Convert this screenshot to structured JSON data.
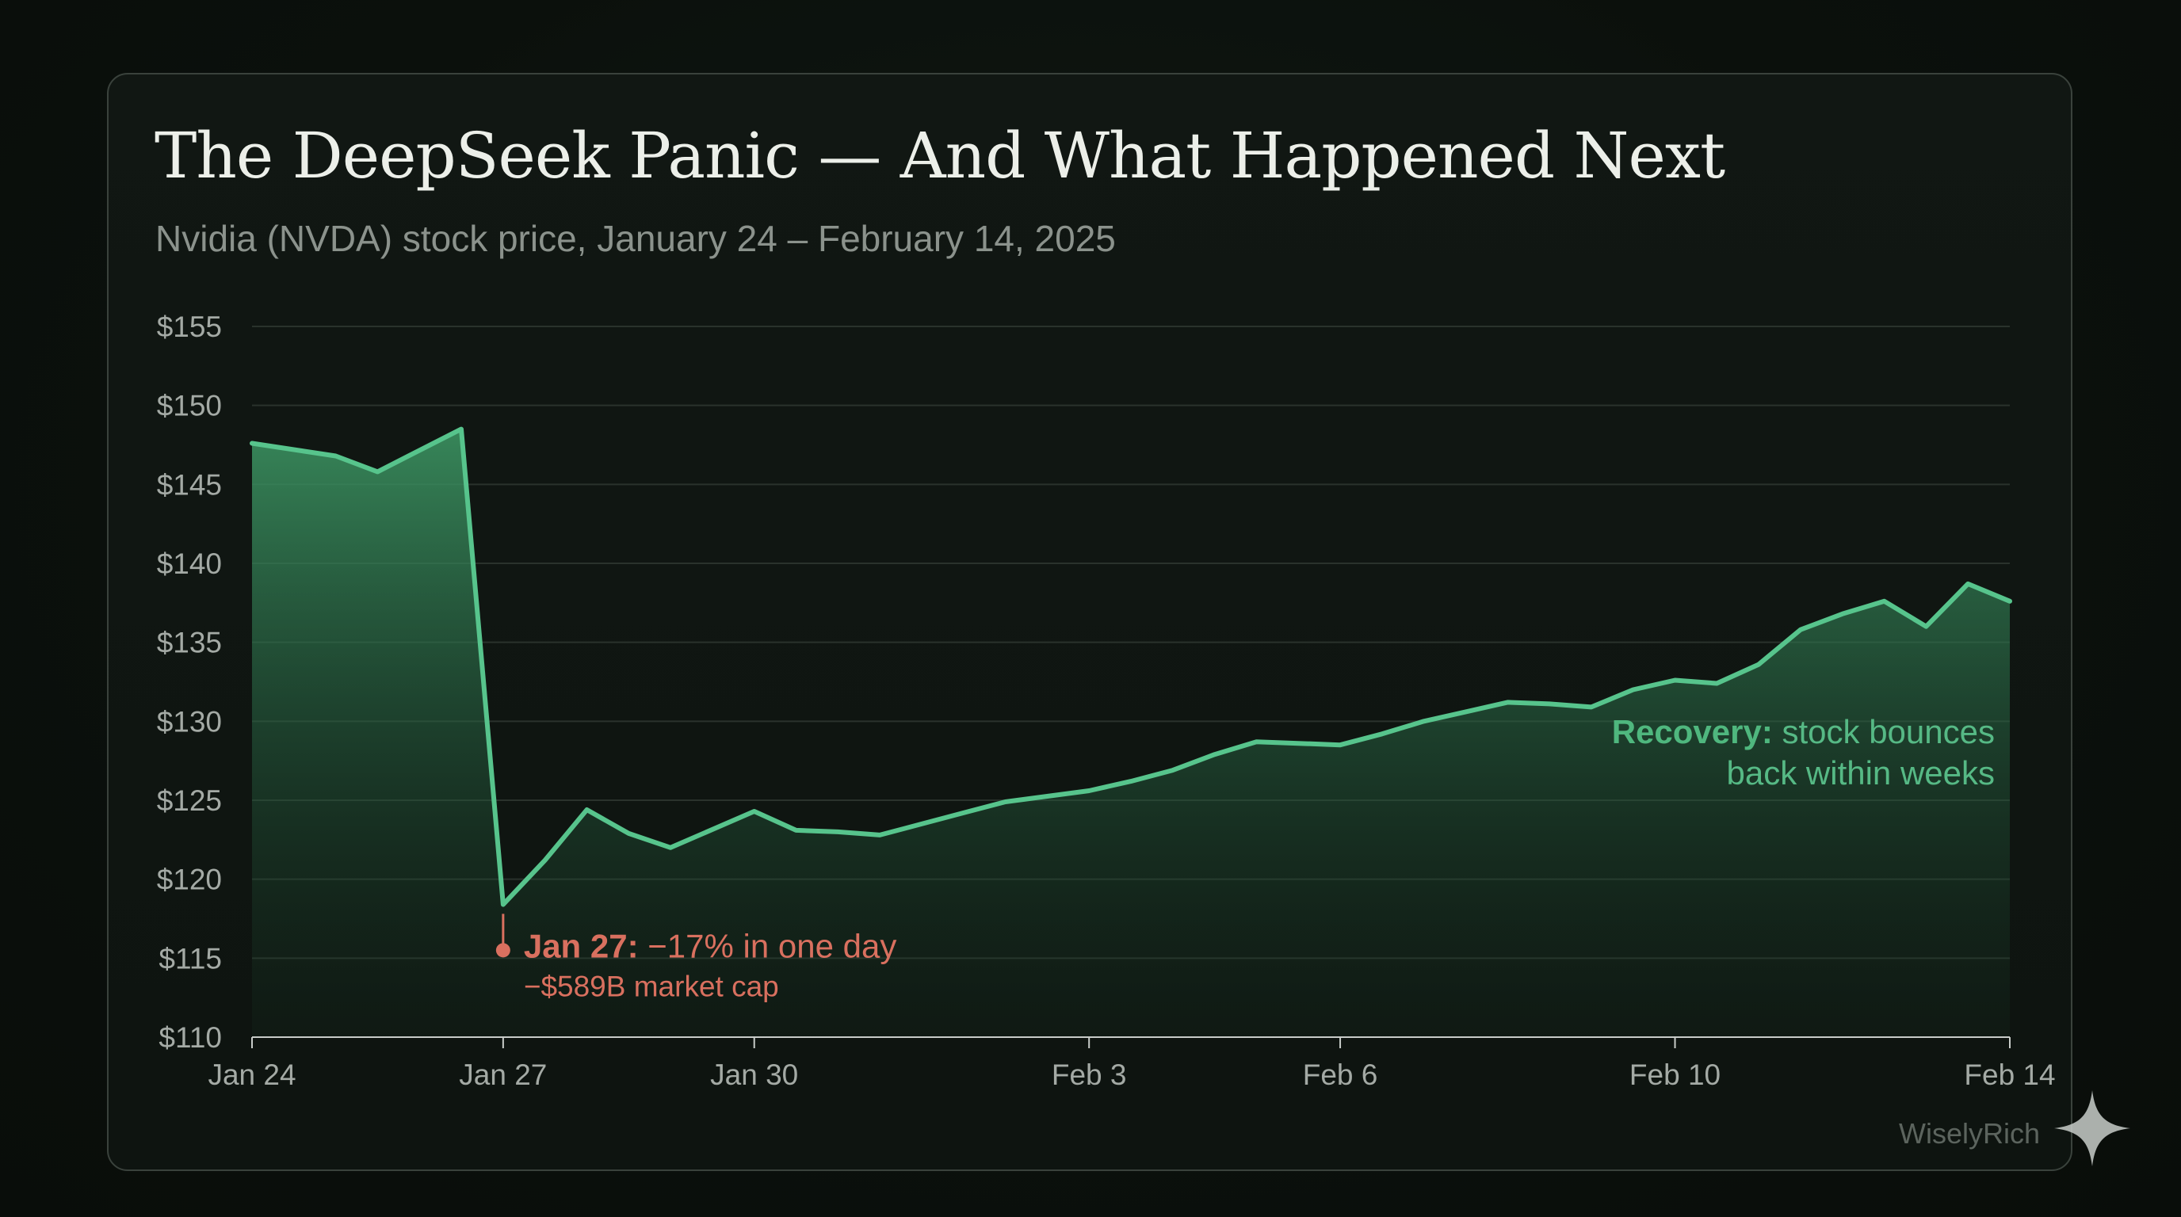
{
  "title": "The DeepSeek Panic — And What Happened Next",
  "subtitle": "Nvidia (NVDA) stock price, January 24 – February 14, 2025",
  "watermark": "WiselyRich",
  "colors": {
    "line": "#57c48c",
    "area_top": "#3e9a66",
    "crash": "#d9705f",
    "recovery": "#4fb77e",
    "grid": "#2a322c"
  },
  "chart_data": {
    "type": "area",
    "title": "The DeepSeek Panic — And What Happened Next",
    "subtitle": "Nvidia (NVDA) stock price, January 24 – February 14, 2025",
    "xlabel": "",
    "ylabel": "",
    "ylim": [
      110,
      155
    ],
    "xlim": [
      0,
      21
    ],
    "grid": true,
    "y_ticks": [
      {
        "value": 110,
        "label": "$110"
      },
      {
        "value": 115,
        "label": "$115"
      },
      {
        "value": 120,
        "label": "$120"
      },
      {
        "value": 125,
        "label": "$125"
      },
      {
        "value": 130,
        "label": "$130"
      },
      {
        "value": 135,
        "label": "$135"
      },
      {
        "value": 140,
        "label": "$140"
      },
      {
        "value": 145,
        "label": "$145"
      },
      {
        "value": 150,
        "label": "$150"
      },
      {
        "value": 155,
        "label": "$155"
      }
    ],
    "x_ticks": [
      {
        "day": 0,
        "label": "Jan 24"
      },
      {
        "day": 3,
        "label": "Jan 27"
      },
      {
        "day": 6,
        "label": "Jan 30"
      },
      {
        "day": 10,
        "label": "Feb 3"
      },
      {
        "day": 13,
        "label": "Feb 6"
      },
      {
        "day": 17,
        "label": "Feb 10"
      },
      {
        "day": 21,
        "label": "Feb 14"
      }
    ],
    "series": [
      {
        "name": "NVDA",
        "x": [
          0,
          1,
          1.5,
          2.5,
          3,
          3.5,
          4,
          4.5,
          5,
          6,
          6.5,
          7,
          7.5,
          8,
          8.5,
          9,
          10,
          10.5,
          11,
          11.5,
          12,
          12.5,
          13,
          13.5,
          14,
          14.5,
          15,
          15.5,
          16,
          16.5,
          17,
          17.5,
          18,
          18.5,
          19,
          19.5,
          20,
          20.5,
          21
        ],
        "values": [
          147.6,
          146.8,
          145.8,
          148.5,
          118.4,
          121.2,
          124.4,
          122.9,
          122.0,
          124.3,
          123.1,
          123.0,
          122.8,
          123.5,
          124.2,
          124.9,
          125.6,
          126.2,
          126.9,
          127.9,
          128.7,
          128.6,
          128.5,
          129.2,
          130.0,
          130.6,
          131.2,
          131.1,
          130.9,
          132.0,
          132.6,
          132.4,
          133.6,
          135.8,
          136.8,
          137.6,
          136.0,
          138.7,
          137.6
        ]
      }
    ],
    "annotations": [
      {
        "day": 3,
        "value": 115.5,
        "bold": "Jan 27:",
        "text": " −17% in one day",
        "line2": "−$589B market cap"
      },
      {
        "bold": "Recovery:",
        "text": " stock bounces",
        "line2": "back within weeks"
      }
    ]
  }
}
